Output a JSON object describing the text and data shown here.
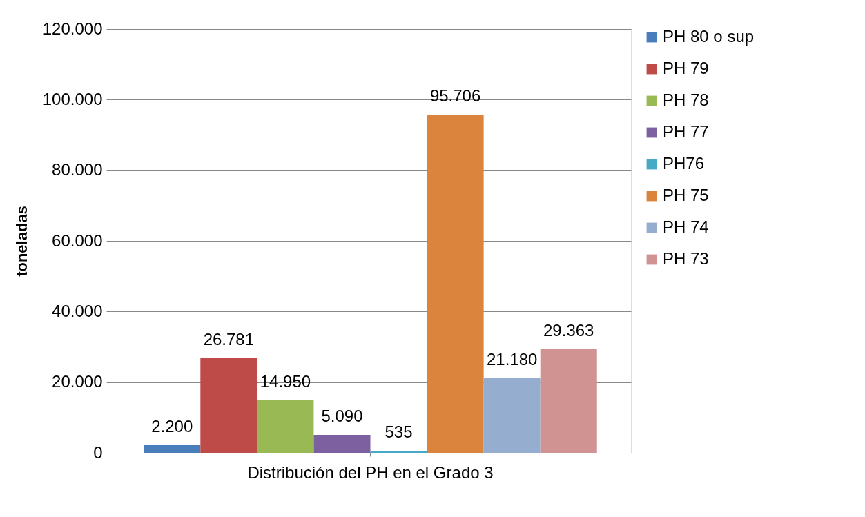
{
  "chart_data": {
    "type": "bar",
    "categories": [
      "Distribución del PH en el Grado 3"
    ],
    "ylabel": "toneladas",
    "ylim": [
      0,
      120000
    ],
    "yticks": [
      0,
      {
        "value": 20000,
        "label": "20.000"
      },
      {
        "value": 40000,
        "label": "40.000"
      },
      {
        "value": 60000,
        "label": "60.000"
      },
      {
        "value": 80000,
        "label": "80.000"
      },
      {
        "value": 100000,
        "label": "100.000"
      },
      {
        "value": 120000,
        "label": "120.000"
      }
    ],
    "grid": "y",
    "legend": "right",
    "series": [
      {
        "name": "PH 80 o sup",
        "color": "#4a7ebb",
        "values": [
          2200
        ],
        "value_labels": [
          "2.200"
        ]
      },
      {
        "name": "PH 79",
        "color": "#be4b48",
        "values": [
          26781
        ],
        "value_labels": [
          "26.781"
        ]
      },
      {
        "name": "PH 78",
        "color": "#98b954",
        "values": [
          14950
        ],
        "value_labels": [
          "14.950"
        ]
      },
      {
        "name": "PH 77",
        "color": "#7d60a0",
        "values": [
          5090
        ],
        "value_labels": [
          "5.090"
        ]
      },
      {
        "name": "PH76",
        "color": "#46aac5",
        "values": [
          535
        ],
        "value_labels": [
          "535"
        ]
      },
      {
        "name": "PH 75",
        "color": "#db843d",
        "values": [
          95706
        ],
        "value_labels": [
          "95.706"
        ]
      },
      {
        "name": "PH 74",
        "color": "#95adcf",
        "values": [
          21180
        ],
        "value_labels": [
          "21.180"
        ]
      },
      {
        "name": "PH 73",
        "color": "#d19392",
        "values": [
          29363
        ],
        "value_labels": [
          "29.363"
        ]
      }
    ]
  }
}
